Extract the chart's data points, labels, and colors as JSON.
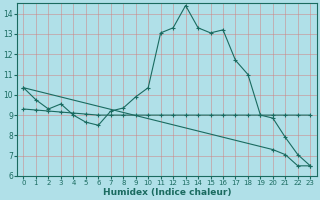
{
  "xlabel": "Humidex (Indice chaleur)",
  "bg_color": "#b0e0e8",
  "grid_color": "#d08080",
  "line_color": "#1a6b60",
  "xlim": [
    -0.5,
    23.5
  ],
  "ylim": [
    6,
    14.5
  ],
  "yticks": [
    6,
    7,
    8,
    9,
    10,
    11,
    12,
    13,
    14
  ],
  "xticks": [
    0,
    1,
    2,
    3,
    4,
    5,
    6,
    7,
    8,
    9,
    10,
    11,
    12,
    13,
    14,
    15,
    16,
    17,
    18,
    19,
    20,
    21,
    22,
    23
  ],
  "line1_x": [
    0,
    1,
    2,
    3,
    4,
    5,
    6,
    7,
    8,
    9,
    10,
    11,
    12,
    13,
    14,
    15,
    16,
    17,
    18,
    19,
    20,
    21,
    22,
    23
  ],
  "line1_y": [
    10.35,
    9.75,
    9.3,
    9.55,
    9.0,
    8.65,
    8.5,
    9.2,
    9.35,
    9.9,
    10.35,
    13.05,
    13.3,
    14.4,
    13.3,
    13.05,
    13.2,
    11.7,
    11.0,
    9.0,
    8.85,
    7.9,
    7.05,
    6.5
  ],
  "line2_x": [
    0,
    1,
    2,
    3,
    4,
    5,
    6,
    7,
    8,
    9,
    10,
    11,
    12,
    13,
    14,
    15,
    16,
    17,
    18,
    19,
    20,
    21,
    22,
    23
  ],
  "line2_y": [
    9.3,
    9.25,
    9.2,
    9.15,
    9.1,
    9.05,
    9.0,
    9.0,
    9.0,
    9.0,
    9.0,
    9.0,
    9.0,
    9.0,
    9.0,
    9.0,
    9.0,
    9.0,
    9.0,
    9.0,
    9.0,
    9.0,
    9.0,
    9.0
  ],
  "line3_x": [
    0,
    20,
    21,
    22,
    23
  ],
  "line3_y": [
    10.35,
    7.3,
    7.05,
    6.5,
    6.5
  ],
  "figw": 3.2,
  "figh": 2.0,
  "dpi": 100
}
